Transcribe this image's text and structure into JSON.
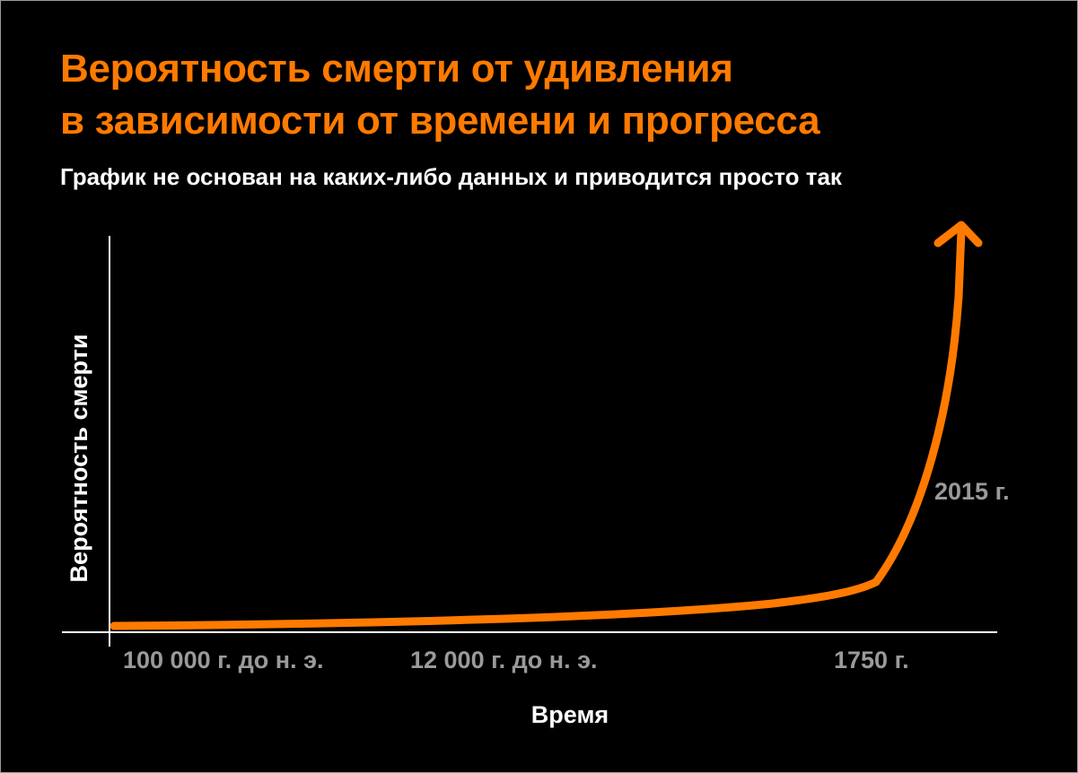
{
  "colors": {
    "background": "#000000",
    "accent": "#ff7a00",
    "text": "#ffffff",
    "tick_text": "#9a9a9a",
    "axis": "#ffffff"
  },
  "chart_data": {
    "type": "line",
    "title_lines": [
      "Вероятность смерти от удивления",
      "в зависимости от времени и прогресса"
    ],
    "subtitle": "График не основан на каких-либо данных и приводится просто так",
    "xlabel": "Время",
    "ylabel": "Вероятность смерти",
    "x_ticks": [
      "100 000 г. до н. э.",
      "12 000 г. до н. э.",
      "1750 г."
    ],
    "annotation": "2015 г.",
    "y_axis_values": false,
    "grid": false,
    "legend": "none",
    "curve_shape": "near-flat rising slowly until 1750 г., then a steep exponential rise ending in an arrow past 2015 г."
  }
}
